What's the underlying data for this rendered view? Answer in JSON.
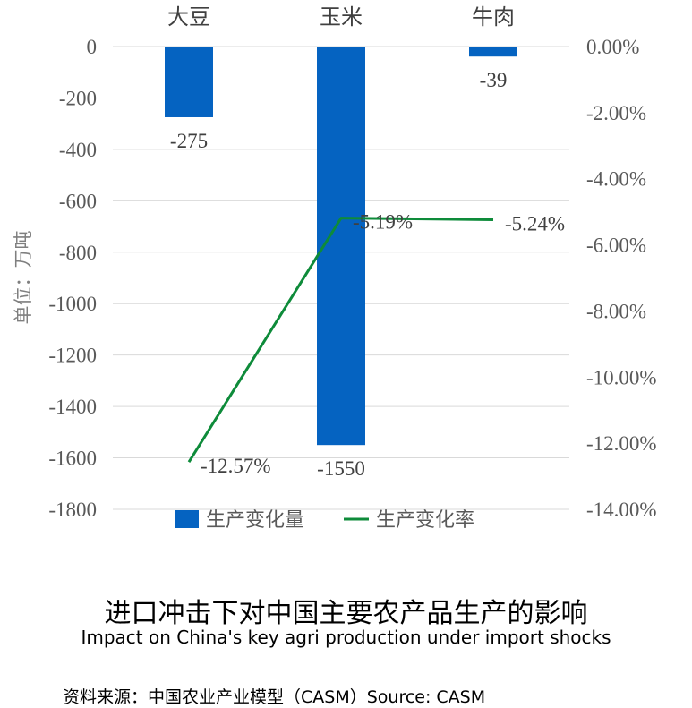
{
  "chart_data": {
    "type": "bar",
    "categories": [
      "大豆",
      "玉米",
      "牛肉"
    ],
    "series": [
      {
        "name": "生产变化量",
        "type": "bar",
        "axis": "left",
        "color": "#0563C1",
        "values": [
          -275,
          -1550,
          -39
        ],
        "labels": [
          "-275",
          "-1550",
          "-39"
        ]
      },
      {
        "name": "生产变化率",
        "type": "line",
        "axis": "right",
        "color": "#0E8B3A",
        "values": [
          -12.57,
          -5.19,
          -5.24
        ],
        "labels": [
          "-12.57%",
          "-5.19%",
          "-5.24%"
        ]
      }
    ],
    "ylabel": "单位：万吨",
    "ylim": [
      -1800,
      0
    ],
    "yticks": [
      "0",
      "-200",
      "-400",
      "-600",
      "-800",
      "-1000",
      "-1200",
      "-1400",
      "-1600",
      "-1800"
    ],
    "y2lim": [
      -14,
      0
    ],
    "y2ticks": [
      "0.00%",
      "-2.00%",
      "-4.00%",
      "-6.00%",
      "-8.00%",
      "-10.00%",
      "-12.00%",
      "-14.00%"
    ],
    "grid": true,
    "legend": "bottom"
  },
  "caption": {
    "title_zh": "进口冲击下对中国主要农产品生产的影响",
    "title_en": "Impact on China's key agri production under import shocks",
    "source": "资料来源：中国农业产业模型（CASM）Source: CASM"
  }
}
